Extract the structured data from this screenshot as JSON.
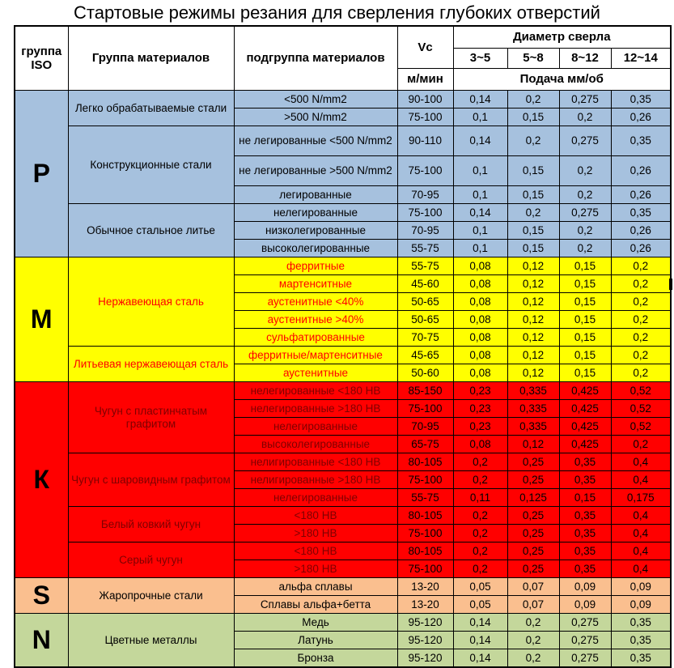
{
  "title": "Стартовые режимы резания для сверления глубоких отверстий",
  "header": {
    "iso_group": "группа ISO",
    "material_group": "Группа материалов",
    "material_subgroup": "подгруппа материалов",
    "vc": "Vc",
    "vc_unit": "м/мин",
    "drill_diameter": "Диаметр сверла",
    "diameters": [
      "3~5",
      "5~8",
      "8~12",
      "12~14"
    ],
    "feed_unit": "Подача мм/об"
  },
  "colors": {
    "p_bg": "#A6C1DE",
    "m_bg": "#FFFF00",
    "k_bg": "#FF0000",
    "s_bg": "#FABF8F",
    "n_bg": "#C4D79B",
    "m_text": "#FF0000",
    "k_text": "#7F0000",
    "grid": "#000000"
  },
  "sections": [
    {
      "iso": "P",
      "bg": "#A6C1DE",
      "name_color": "#000000",
      "value_color": "#000000",
      "groups": [
        {
          "name": "Легко обрабатываемые стали",
          "rows": [
            {
              "sub": "<500 N/mm2",
              "vc": "90-100",
              "feeds": [
                "0,14",
                "0,2",
                "0,275",
                "0,35"
              ]
            },
            {
              "sub": ">500 N/mm2",
              "vc": "75-100",
              "feeds": [
                "0,1",
                "0,15",
                "0,2",
                "0,26"
              ]
            }
          ]
        },
        {
          "name": "Конструкционные стали",
          "rows": [
            {
              "sub": "не легированные <500 N/mm2",
              "vc": "90-110",
              "feeds": [
                "0,14",
                "0,2",
                "0,275",
                "0,35"
              ],
              "tall": true
            },
            {
              "sub": "не легированные >500 N/mm2",
              "vc": "75-100",
              "feeds": [
                "0,1",
                "0,15",
                "0,2",
                "0,26"
              ],
              "tall": true
            },
            {
              "sub": "легированные",
              "vc": "70-95",
              "feeds": [
                "0,1",
                "0,15",
                "0,2",
                "0,26"
              ]
            }
          ]
        },
        {
          "name": "Обычное стальное литье",
          "rows": [
            {
              "sub": "нелегированные",
              "vc": "75-100",
              "feeds": [
                "0,14",
                "0,2",
                "0,275",
                "0,35"
              ]
            },
            {
              "sub": "низколегированные",
              "vc": "70-95",
              "feeds": [
                "0,1",
                "0,15",
                "0,2",
                "0,26"
              ]
            },
            {
              "sub": "высоколегированные",
              "vc": "55-75",
              "feeds": [
                "0,1",
                "0,15",
                "0,2",
                "0,26"
              ]
            }
          ]
        }
      ]
    },
    {
      "iso": "M",
      "bg": "#FFFF00",
      "name_color": "#FF0000",
      "value_color": "#000000",
      "groups": [
        {
          "name": "Нержавеющая сталь",
          "rows": [
            {
              "sub": "ферритные",
              "vc": "55-75",
              "feeds": [
                "0,08",
                "0,12",
                "0,15",
                "0,2"
              ]
            },
            {
              "sub": "мартенситные",
              "vc": "45-60",
              "feeds": [
                "0,08",
                "0,12",
                "0,15",
                "0,2"
              ]
            },
            {
              "sub": "аустенитные <40%",
              "vc": "50-65",
              "feeds": [
                "0,08",
                "0,12",
                "0,15",
                "0,2"
              ]
            },
            {
              "sub": "аустенитные >40%",
              "vc": "50-65",
              "feeds": [
                "0,08",
                "0,12",
                "0,15",
                "0,2"
              ]
            },
            {
              "sub": "сульфатированные",
              "vc": "70-75",
              "feeds": [
                "0,08",
                "0,12",
                "0,15",
                "0,2"
              ]
            }
          ]
        },
        {
          "name": "Литьевая нержавеющая сталь",
          "rows": [
            {
              "sub": "ферритные/мартенситные",
              "vc": "45-65",
              "feeds": [
                "0,08",
                "0,12",
                "0,15",
                "0,2"
              ]
            },
            {
              "sub": "аустенитные",
              "vc": "50-60",
              "feeds": [
                "0,08",
                "0,12",
                "0,15",
                "0,2"
              ]
            }
          ]
        }
      ]
    },
    {
      "iso": "К",
      "bg": "#FF0000",
      "name_color": "#7F0000",
      "value_color": "#000000",
      "groups": [
        {
          "name": "Чугун с пластинчатым графитом",
          "rows": [
            {
              "sub": "нелегированные <180 НВ",
              "vc": "85-150",
              "feeds": [
                "0,23",
                "0,335",
                "0,425",
                "0,52"
              ]
            },
            {
              "sub": "нелегированные >180 НВ",
              "vc": "75-100",
              "feeds": [
                "0,23",
                "0,335",
                "0,425",
                "0,52"
              ]
            },
            {
              "sub": "нелегированные",
              "vc": "70-95",
              "feeds": [
                "0,23",
                "0,335",
                "0,425",
                "0,52"
              ]
            },
            {
              "sub": "высоколегированные",
              "vc": "65-75",
              "feeds": [
                "0,08",
                "0,12",
                "0,425",
                "0,2"
              ]
            }
          ]
        },
        {
          "name": "Чугун с шаровидным графитом",
          "rows": [
            {
              "sub": "нелигированные <180 НВ",
              "vc": "80-105",
              "feeds": [
                "0,2",
                "0,25",
                "0,35",
                "0,4"
              ]
            },
            {
              "sub": "нелигированные >180 НВ",
              "vc": "75-100",
              "feeds": [
                "0,2",
                "0,25",
                "0,35",
                "0,4"
              ]
            },
            {
              "sub": "нелегированные",
              "vc": "55-75",
              "feeds": [
                "0,11",
                "0,125",
                "0,15",
                "0,175"
              ]
            }
          ]
        },
        {
          "name": "Белый ковкий чугун",
          "rows": [
            {
              "sub": "<180 НВ",
              "vc": "80-105",
              "feeds": [
                "0,2",
                "0,25",
                "0,35",
                "0,4"
              ]
            },
            {
              "sub": ">180 НВ",
              "vc": "75-100",
              "feeds": [
                "0,2",
                "0,25",
                "0,35",
                "0,4"
              ]
            }
          ]
        },
        {
          "name": "Серый чугун",
          "rows": [
            {
              "sub": "<180 НВ",
              "vc": "80-105",
              "feeds": [
                "0,2",
                "0,25",
                "0,35",
                "0,4"
              ]
            },
            {
              "sub": ">180 НВ",
              "vc": "75-100",
              "feeds": [
                "0,2",
                "0,25",
                "0,35",
                "0,4"
              ]
            }
          ]
        }
      ]
    },
    {
      "iso": "S",
      "bg": "#FABF8F",
      "name_color": "#000000",
      "value_color": "#000000",
      "groups": [
        {
          "name": "Жаропрочные стали",
          "rows": [
            {
              "sub": "альфа сплавы",
              "vc": "13-20",
              "feeds": [
                "0,05",
                "0,07",
                "0,09",
                "0,09"
              ]
            },
            {
              "sub": "Сплавы альфа+бетта",
              "vc": "13-20",
              "feeds": [
                "0,05",
                "0,07",
                "0,09",
                "0,09"
              ]
            }
          ]
        }
      ]
    },
    {
      "iso": "N",
      "bg": "#C4D79B",
      "name_color": "#000000",
      "value_color": "#000000",
      "groups": [
        {
          "name": "Цветные металлы",
          "rows": [
            {
              "sub": "Медь",
              "vc": "95-120",
              "feeds": [
                "0,14",
                "0,2",
                "0,275",
                "0,35"
              ]
            },
            {
              "sub": "Латунь",
              "vc": "95-120",
              "feeds": [
                "0,14",
                "0,2",
                "0,275",
                "0,35"
              ]
            },
            {
              "sub": "Бронза",
              "vc": "95-120",
              "feeds": [
                "0,14",
                "0,2",
                "0,275",
                "0,35"
              ]
            }
          ]
        }
      ]
    }
  ]
}
